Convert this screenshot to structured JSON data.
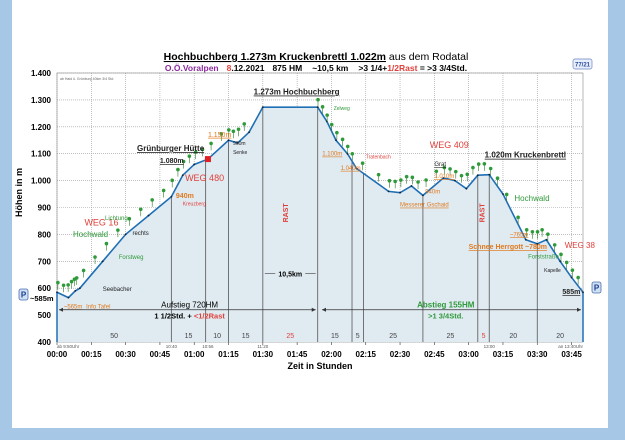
{
  "header": {
    "title_main": "Hochbuchberg 1.273m  Kruckenbrettl 1.022m",
    "title_suffix": " aus dem Rodatal",
    "region": "O.Ö.Voralpen",
    "date_day": "8",
    "date_rest": ".12.2021",
    "hm": "875 HM",
    "distance": "~10,5 km",
    "time_a": ">3 1/4+",
    "time_rast": "1/2Rast",
    "time_total": " = >3 3/4Std.",
    "badge": "77/21",
    "note": "ab Haid ü. Grünburg 40km 3/4 Std"
  },
  "colors": {
    "line": "#1f6fb5",
    "fill": "#dfeaf1",
    "red": "#e0403a",
    "orange": "#e07a1f",
    "green": "#2f9a3a",
    "purple": "#8a2a9a"
  },
  "chart_data": {
    "type": "area",
    "title": "Hochbuchberg 1.273m  Kruckenbrettl 1.022m aus dem Rodatal",
    "xlabel": "Zeit in Stunden",
    "ylabel": "Höhen in m",
    "xlim": [
      0,
      230
    ],
    "ylim": [
      400,
      1400
    ],
    "grid": true,
    "x_ticks": [
      {
        "t": 0,
        "label": "00:00"
      },
      {
        "t": 15,
        "label": "00:15"
      },
      {
        "t": 30,
        "label": "00:30"
      },
      {
        "t": 45,
        "label": "00:45"
      },
      {
        "t": 60,
        "label": "01:00"
      },
      {
        "t": 75,
        "label": "01:15"
      },
      {
        "t": 90,
        "label": "01:30"
      },
      {
        "t": 105,
        "label": "01:45"
      },
      {
        "t": 120,
        "label": "02:00"
      },
      {
        "t": 135,
        "label": "02:15"
      },
      {
        "t": 150,
        "label": "02:30"
      },
      {
        "t": 165,
        "label": "02:45"
      },
      {
        "t": 180,
        "label": "03:00"
      },
      {
        "t": 195,
        "label": "03:15"
      },
      {
        "t": 210,
        "label": "03:30"
      },
      {
        "t": 225,
        "label": "03:45"
      }
    ],
    "y_ticks": [
      {
        "v": 400,
        "label": "400"
      },
      {
        "v": 500,
        "label": "500"
      },
      {
        "v": 600,
        "label": "600"
      },
      {
        "v": 700,
        "label": "700"
      },
      {
        "v": 800,
        "label": "800"
      },
      {
        "v": 900,
        "label": "900"
      },
      {
        "v": 1000,
        "label": "1.000"
      },
      {
        "v": 1100,
        "label": "1.100"
      },
      {
        "v": 1200,
        "label": "1.200"
      },
      {
        "v": 1300,
        "label": "1.300"
      },
      {
        "v": 1400,
        "label": "1.400"
      }
    ],
    "profile": {
      "t": [
        0,
        5,
        8,
        10,
        20,
        30,
        40,
        50,
        55,
        60,
        66,
        75,
        79,
        84,
        90,
        114,
        118,
        122,
        127,
        131,
        145,
        150,
        155,
        160,
        169,
        174,
        179,
        184,
        189,
        195,
        205,
        210,
        214,
        220,
        225,
        230
      ],
      "elev": [
        585,
        565,
        590,
        600,
        700,
        800,
        870,
        940,
        1020,
        1060,
        1080,
        1150,
        1140,
        1180,
        1273,
        1273,
        1220,
        1150,
        1100,
        1045,
        960,
        955,
        980,
        945,
        1010,
        1000,
        970,
        1020,
        1022,
        950,
        780,
        765,
        780,
        700,
        640,
        585
      ]
    },
    "segment_boundaries": [
      50,
      65,
      75,
      90,
      114,
      129,
      134,
      160,
      184,
      189,
      210,
      230
    ],
    "segment_minutes": [
      {
        "from": 0,
        "to": 50,
        "label": "50",
        "rest": false
      },
      {
        "from": 50,
        "to": 65,
        "label": "15",
        "rest": false
      },
      {
        "from": 65,
        "to": 75,
        "label": "10",
        "rest": false
      },
      {
        "from": 75,
        "to": 90,
        "label": "15",
        "rest": false
      },
      {
        "from": 90,
        "to": 114,
        "label": "25",
        "rest": true
      },
      {
        "from": 114,
        "to": 129,
        "label": "15",
        "rest": false
      },
      {
        "from": 129,
        "to": 134,
        "label": "5",
        "rest": false
      },
      {
        "from": 134,
        "to": 160,
        "label": "25",
        "rest": false
      },
      {
        "from": 160,
        "to": 184,
        "label": "25",
        "rest": false
      },
      {
        "from": 184,
        "to": 189,
        "label": "5",
        "rest": true
      },
      {
        "from": 189,
        "to": 210,
        "label": "20",
        "rest": false
      },
      {
        "from": 210,
        "to": 230,
        "label": "20",
        "rest": false
      }
    ],
    "clock_labels": [
      {
        "t": 0,
        "label": "ab 9:50Uhr"
      },
      {
        "t": 50,
        "label": "10:40"
      },
      {
        "t": 66,
        "label": "10:56"
      },
      {
        "t": 90,
        "label": "11:20"
      },
      {
        "t": 189,
        "label": "13:00"
      },
      {
        "t": 230,
        "label": "an 13:40Uhr"
      }
    ],
    "annotations": [
      {
        "t": 12,
        "e": 833,
        "text": "WEG 16",
        "c": "red",
        "s": 9
      },
      {
        "t": 7,
        "e": 790,
        "text": "Hochwald",
        "c": "green",
        "s": 8
      },
      {
        "t": 21,
        "e": 853,
        "text": "Lichtung",
        "c": "green",
        "s": 6
      },
      {
        "t": 27,
        "e": 708,
        "text": "Forstweg",
        "c": "green",
        "s": 6
      },
      {
        "t": 33,
        "e": 797,
        "text": "rechts",
        "c": "dark",
        "s": 6
      },
      {
        "t": 20,
        "e": 590,
        "text": "Seebacher",
        "c": "dark",
        "s": 6
      },
      {
        "t": 3,
        "e": 551,
        "text": "~565m",
        "c": "orange",
        "s": 6,
        "u": true
      },
      {
        "t": 11,
        "e": 551,
        "text": "Info Tafel",
        "c": "orange",
        "s": 6
      },
      {
        "t": 52,
        "e": 935,
        "text": "940m",
        "c": "orange",
        "s": 7,
        "b": true
      },
      {
        "t": 55,
        "e": 907,
        "text": "Kreuzberg",
        "c": "red",
        "s": 5
      },
      {
        "t": 56,
        "e": 998,
        "text": "WEG 480",
        "c": "red",
        "s": 9
      },
      {
        "t": 35,
        "e": 1110,
        "text": "Grünburger Hütte",
        "c": "dark",
        "s": 8,
        "b": true,
        "u": true
      },
      {
        "t": 45,
        "e": 1076,
        "text": "1.080m",
        "c": "dark",
        "s": 7,
        "b": true,
        "u": true
      },
      {
        "t": 66,
        "e": 1163,
        "text": "1.150m",
        "c": "orange",
        "s": 7,
        "u": true
      },
      {
        "t": 77,
        "e": 1125,
        "text": "960m",
        "c": "dark",
        "s": 5
      },
      {
        "t": 77,
        "e": 1106,
        "text": "Senke",
        "c": "dark",
        "s": 5
      },
      {
        "t": 86,
        "e": 1320,
        "text": "1.273m Hochbuchberg",
        "c": "dark",
        "s": 8,
        "b": true,
        "u": true
      },
      {
        "t": 121,
        "e": 1262,
        "text": "Zelweg",
        "c": "green",
        "s": 5
      },
      {
        "t": 116,
        "e": 1093,
        "text": "1.100m",
        "c": "orange",
        "s": 6,
        "u": true
      },
      {
        "t": 135,
        "e": 1082,
        "text": "Tratenbach",
        "c": "red",
        "s": 5
      },
      {
        "t": 124,
        "e": 1040,
        "text": "1.040m",
        "c": "orange",
        "s": 6,
        "u": true
      },
      {
        "t": 163,
        "e": 1122,
        "text": "WEG 409",
        "c": "red",
        "s": 9
      },
      {
        "t": 165,
        "e": 1043,
        "text": "Grat",
        "c": "dark",
        "s": 6,
        "u": true
      },
      {
        "t": 165,
        "e": 1020,
        "text": "1.010m",
        "c": "orange",
        "s": 6,
        "u": true
      },
      {
        "t": 187,
        "e": 1085,
        "text": "1.020m Kruckenbrettl",
        "c": "dark",
        "s": 8,
        "b": true,
        "u": true
      },
      {
        "t": 161,
        "e": 937,
        "text": "940m",
        "c": "orange",
        "s": 6
      },
      {
        "t": 150,
        "e": 918,
        "text": "Messerer Gschaid",
        "c": "orange",
        "s": 6,
        "u": true
      },
      {
        "t": 200,
        "e": 925,
        "text": "Hochwald",
        "c": "green",
        "s": 8
      },
      {
        "t": 198,
        "e": 793,
        "text": "~765m",
        "c": "orange",
        "s": 6,
        "u": true
      },
      {
        "t": 180,
        "e": 745,
        "text": "Schnee Herrgott ~780m",
        "c": "orange",
        "s": 7,
        "b": true,
        "u": true
      },
      {
        "t": 222,
        "e": 750,
        "text": "WEG 38",
        "c": "red",
        "s": 8
      },
      {
        "t": 206,
        "e": 710,
        "text": "Forststraße",
        "c": "green",
        "s": 6
      },
      {
        "t": 213,
        "e": 661,
        "text": "Kapelle",
        "c": "dark",
        "s": 5
      },
      {
        "t": 221,
        "e": 578,
        "text": "585m",
        "c": "dark",
        "s": 7,
        "b": true,
        "u": true
      }
    ],
    "rest_labels": [
      {
        "t": 101,
        "e": 880,
        "text": "RAST"
      },
      {
        "t": 187,
        "e": 880,
        "text": "RAST"
      }
    ],
    "distance_arrow": {
      "from": 90,
      "to": 114,
      "e": 655,
      "text": "10,5km"
    },
    "ascent": {
      "from": 0,
      "to": 114,
      "e": 520,
      "title": "Aufstieg 720HM",
      "time": "1 1/2Std. + ",
      "rest": "<1/2Rast"
    },
    "descent": {
      "from": 115,
      "to": 230,
      "e": 520,
      "title": "Abstieg 155HM",
      "time": ">1 3/4Std."
    },
    "parking": {
      "label": "P",
      "start_text": "~585m"
    }
  }
}
